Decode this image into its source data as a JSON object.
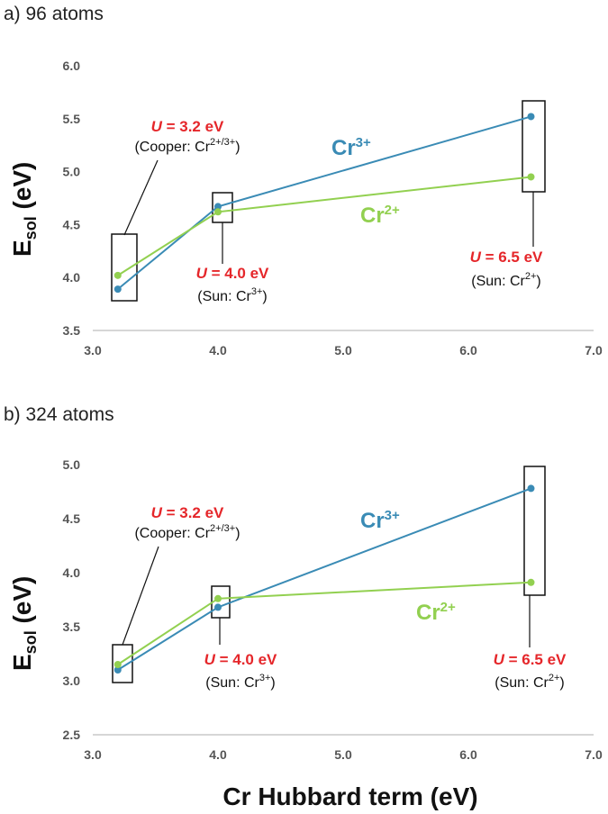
{
  "colors": {
    "cr3": "#3a8bb5",
    "cr2": "#92d050",
    "annotation": "#e5262a",
    "axis": "#c8c8c8"
  },
  "xlabel": "Cr Hubbard term (eV)",
  "chart_data": [
    {
      "type": "line",
      "panel_label": "a) 96 atoms",
      "ylabel": "E",
      "ylabel_sub": "sol",
      "ylabel_unit": " (eV)",
      "x_ticks": [
        "3.0",
        "4.0",
        "5.0",
        "6.0",
        "7.0"
      ],
      "y_ticks": [
        "3.5",
        "4.0",
        "4.5",
        "5.0",
        "5.5",
        "6.0"
      ],
      "xlim": [
        3.0,
        7.0
      ],
      "ylim": [
        3.5,
        6.0
      ],
      "x": [
        3.2,
        4.0,
        6.5
      ],
      "series": [
        {
          "name": "Cr3+",
          "label_base": "Cr",
          "label_sup": "3+",
          "color_key": "cr3",
          "values": [
            3.89,
            4.67,
            5.52
          ]
        },
        {
          "name": "Cr2+",
          "label_base": "Cr",
          "label_sup": "2+",
          "color_key": "cr2",
          "values": [
            4.02,
            4.62,
            4.95
          ]
        }
      ],
      "annotations": [
        {
          "u_var": "U",
          "u_text": " = 3.2 eV",
          "src_pre": "(Cooper: Cr",
          "src_sup": "2+/3+",
          "src_post": ")"
        },
        {
          "u_var": "U",
          "u_text": " = 4.0 eV",
          "src_pre": "(Sun: Cr",
          "src_sup": "3+",
          "src_post": ")"
        },
        {
          "u_var": "U",
          "u_text": " = 6.5 eV",
          "src_pre": "(Sun: Cr",
          "src_sup": "2+",
          "src_post": ")"
        }
      ]
    },
    {
      "type": "line",
      "panel_label": "b) 324 atoms",
      "ylabel": "E",
      "ylabel_sub": "sol",
      "ylabel_unit": " (eV)",
      "x_ticks": [
        "3.0",
        "4.0",
        "5.0",
        "6.0",
        "7.0"
      ],
      "y_ticks": [
        "2.5",
        "3.0",
        "3.5",
        "4.0",
        "4.5",
        "5.0"
      ],
      "xlim": [
        3.0,
        7.0
      ],
      "ylim": [
        2.5,
        5.0
      ],
      "x": [
        3.2,
        4.0,
        6.5
      ],
      "series": [
        {
          "name": "Cr3+",
          "label_base": "Cr",
          "label_sup": "3+",
          "color_key": "cr3",
          "values": [
            3.1,
            3.68,
            4.78
          ]
        },
        {
          "name": "Cr2+",
          "label_base": "Cr",
          "label_sup": "2+",
          "color_key": "cr2",
          "values": [
            3.15,
            3.76,
            3.91
          ]
        }
      ],
      "annotations": [
        {
          "u_var": "U",
          "u_text": " = 3.2 eV",
          "src_pre": "(Cooper: Cr",
          "src_sup": "2+/3+",
          "src_post": ")"
        },
        {
          "u_var": "U",
          "u_text": " = 4.0 eV",
          "src_pre": "(Sun: Cr",
          "src_sup": "3+",
          "src_post": ")"
        },
        {
          "u_var": "U",
          "u_text": " = 6.5 eV",
          "src_pre": "(Sun: Cr",
          "src_sup": "2+",
          "src_post": ")"
        }
      ]
    }
  ]
}
